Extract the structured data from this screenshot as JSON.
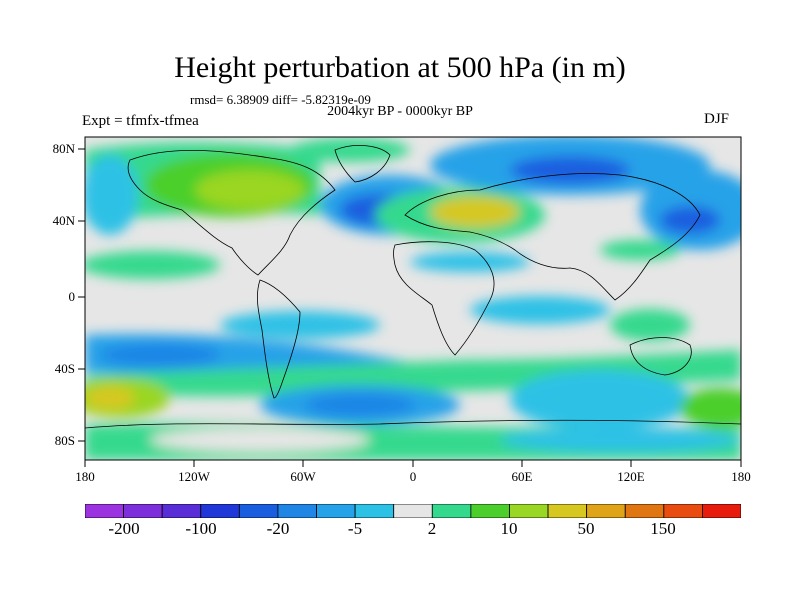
{
  "title": "Height perturbation at 500 hPa (in m)",
  "stats_text": "rmsd= 6.38909 diff= -5.82319e-09",
  "period_text": "2004kyr BP - 0000kyr BP",
  "experiment_text": "Expt = tfmfx-tfmea",
  "season_text": "DJF",
  "y_axis_labels": [
    "80N",
    "40N",
    "0",
    "40S",
    "80S"
  ],
  "x_axis_labels": [
    "180",
    "120W",
    "60W",
    "0",
    "60E",
    "120E",
    "180"
  ],
  "colorbar": {
    "colors": [
      "#9b33e0",
      "#7d2fdb",
      "#5a2ed6",
      "#2038d8",
      "#1a5ee0",
      "#1f86e6",
      "#26a2e8",
      "#2ec1e6",
      "#e6e6e6",
      "#34d98e",
      "#4ccf2c",
      "#9ad624",
      "#d6c821",
      "#e0a419",
      "#e07612",
      "#e84c10",
      "#e81c0c"
    ],
    "labels": [
      "-200",
      "-100",
      "-20",
      "-5",
      "2",
      "10",
      "50",
      "150"
    ]
  },
  "map_colors": {
    "background_neutral": "#e6e6e6",
    "positive_weak": "#34d98e",
    "positive_mid": "#4ccf2c",
    "positive_strong": "#9ad624",
    "positive_max": "#d6c821",
    "negative_weak": "#2ec1e6",
    "negative_mid": "#26a2e8",
    "negative_strong": "#1f86e6",
    "negative_max": "#1a5ee0"
  }
}
